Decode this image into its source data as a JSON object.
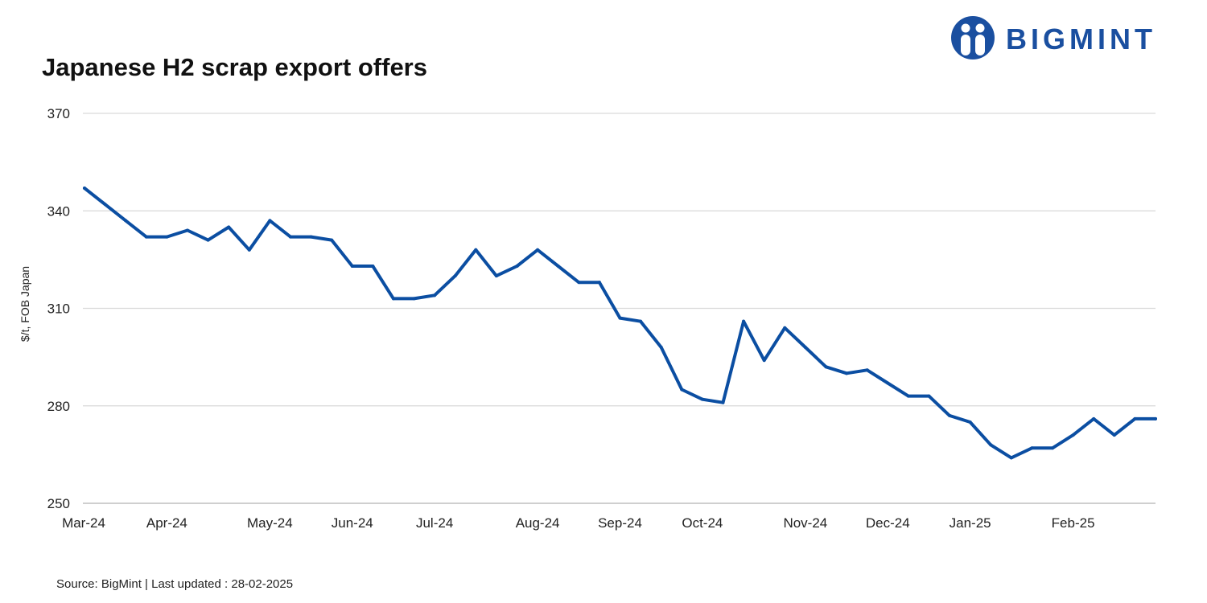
{
  "header": {
    "title": "Japanese H2 scrap export offers"
  },
  "brand": {
    "name": "BIGMINT",
    "color": "#1a4fa0",
    "icon": "bigmint-people-logo-icon"
  },
  "footer": {
    "source": "Source: BigMint  | Last updated : 28-02-2025"
  },
  "chart_data": {
    "type": "line",
    "title": "Japanese H2 scrap export offers",
    "xlabel": "",
    "ylabel": "$/t, FOB Japan",
    "ylim": [
      250,
      370
    ],
    "yticks": [
      250,
      280,
      310,
      340,
      370
    ],
    "grid": true,
    "legend": "none",
    "line_color": "#0b4ea2",
    "x_tick_labels": [
      "Mar-24",
      "Apr-24",
      "May-24",
      "Jun-24",
      "Jul-24",
      "Aug-24",
      "Sep-24",
      "Oct-24",
      "Nov-24",
      "Dec-24",
      "Jan-25",
      "Feb-25"
    ],
    "x_tick_index": [
      0,
      4,
      9,
      13,
      17,
      22,
      26,
      30,
      35,
      39,
      43,
      48
    ],
    "series": [
      {
        "values": [
          347,
          342,
          337,
          332,
          332,
          334,
          331,
          335,
          328,
          337,
          332,
          332,
          331,
          323,
          323,
          313,
          313,
          314,
          320,
          328,
          320,
          323,
          328,
          323,
          318,
          318,
          307,
          306,
          298,
          285,
          282,
          281,
          306,
          294,
          304,
          298,
          292,
          290,
          291,
          287,
          283,
          283,
          277,
          275,
          268,
          264,
          267,
          267,
          271,
          276,
          271,
          276,
          276
        ]
      }
    ]
  }
}
